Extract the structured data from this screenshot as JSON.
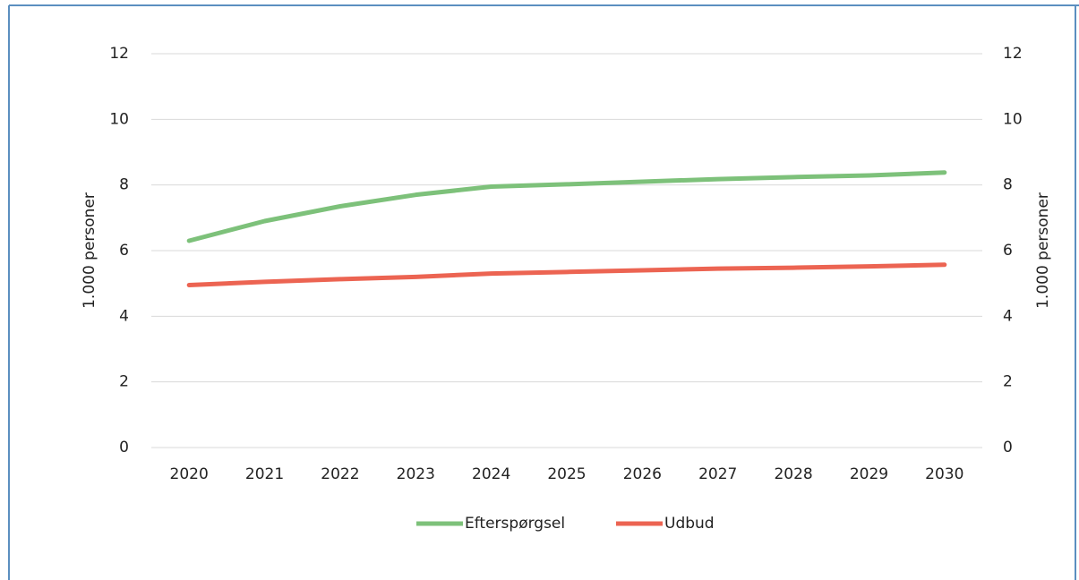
{
  "chart_data": {
    "type": "line",
    "categories": [
      "2020",
      "2021",
      "2022",
      "2023",
      "2024",
      "2025",
      "2026",
      "2027",
      "2028",
      "2029",
      "2030"
    ],
    "series": [
      {
        "name": "Efterspørgsel",
        "color": "#7dc17a",
        "values": [
          6.3,
          6.9,
          7.35,
          7.7,
          7.95,
          8.02,
          8.1,
          8.18,
          8.24,
          8.29,
          8.38
        ]
      },
      {
        "name": "Udbud",
        "color": "#ec6452",
        "values": [
          4.95,
          5.05,
          5.13,
          5.2,
          5.3,
          5.35,
          5.4,
          5.45,
          5.48,
          5.52,
          5.57
        ]
      }
    ],
    "ylabel": "1.000 personer",
    "y2label": "1.000 personer",
    "ylim": [
      0,
      12
    ],
    "yticks": [
      0,
      2,
      4,
      6,
      8,
      10,
      12
    ],
    "y2lim": [
      0,
      12
    ],
    "y2ticks": [
      0,
      2,
      4,
      6,
      8,
      10,
      12
    ],
    "grid": true,
    "legend": "bottom"
  }
}
